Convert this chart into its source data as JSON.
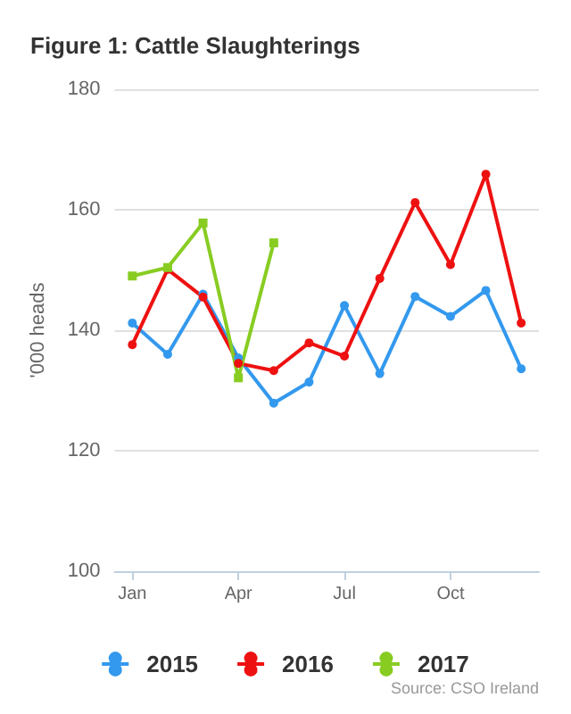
{
  "chart_data": {
    "type": "line",
    "title": "Figure 1: Cattle Slaughterings",
    "ylabel": "'000 heads",
    "categories": [
      "Jan",
      null,
      null,
      "Apr",
      null,
      null,
      "Jul",
      null,
      null,
      "Oct",
      null,
      null
    ],
    "series": [
      {
        "name": "2015",
        "color": "#3399ee",
        "marker": "circle",
        "values": [
          141.2,
          136.0,
          146.0,
          135.4,
          127.9,
          131.4,
          144.1,
          132.8,
          145.6,
          142.3,
          146.6,
          133.6
        ]
      },
      {
        "name": "2016",
        "color": "#ee1111",
        "marker": "circle",
        "values": [
          137.6,
          150.1,
          145.5,
          134.5,
          133.3,
          137.9,
          135.7,
          148.6,
          161.2,
          150.9,
          165.9,
          141.2
        ]
      },
      {
        "name": "2017",
        "color": "#88cc22",
        "marker": "square",
        "values": [
          149.0,
          150.4,
          157.8,
          132.1,
          154.5,
          null,
          null,
          null,
          null,
          null,
          null,
          null
        ]
      }
    ],
    "ylim": [
      100,
      180
    ],
    "yticks": [
      100,
      120,
      140,
      160,
      180
    ],
    "grid": "y",
    "legend": "bottom",
    "line_style": "solid",
    "annotations": [
      "Source: CSO Ireland"
    ]
  }
}
